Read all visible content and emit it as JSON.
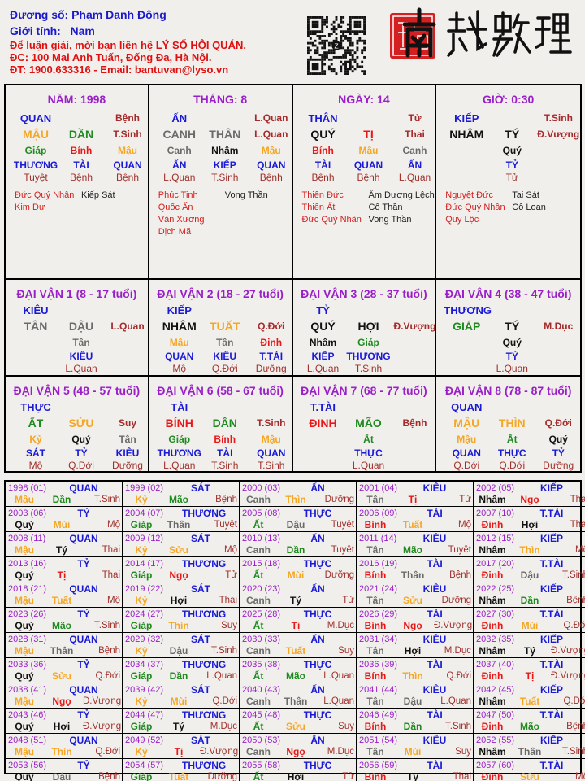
{
  "header": {
    "name_line": "Đương số: Phạm Danh Đông",
    "gender_line": "Giới tính:   Nam",
    "contact_line": "Để luận giải, mời bạn liên hệ LÝ SỐ HỘI QUÁN.",
    "address_line": "ĐC: 100 Mai Anh Tuấn, Đống Đa, Hà Nội.",
    "phone_line": "ĐT: 1900.633316 - Email: bantuvan@lyso.vn"
  },
  "logo": {
    "text": "南越數理",
    "icons": [
      "qr-code-icon",
      "seal-icon"
    ]
  },
  "colors": {
    "wood": "#1f8a1f",
    "fire": "#e81818",
    "earth": "#f5a623",
    "metal": "#6b6b6b",
    "water": "#111111",
    "ten_god": "#1a1ad6",
    "phase": "#a0302c",
    "title": "#9a1fc8",
    "good_star": "#d42020",
    "bad_star": "#222222"
  },
  "pillars": [
    {
      "title": "NĂM: 1998",
      "god": "QUAN",
      "top_phase": "Bệnh",
      "stem": "MẬU",
      "branch": "DẦN",
      "phase": "T.Sinh",
      "hidden": [
        {
          "stem": "Giáp",
          "god": "THƯƠNG",
          "phase": "Tuyệt"
        },
        {
          "stem": "Bính",
          "god": "TÀI",
          "phase": "Bệnh"
        },
        {
          "stem": "Mậu",
          "god": "QUAN",
          "phase": "Bệnh"
        }
      ],
      "good_stars": [
        "Đức Quý Nhân",
        "Kim Dư"
      ],
      "bad_stars": [
        "Kiếp Sát"
      ]
    },
    {
      "title": "THÁNG: 8",
      "god": "ẤN",
      "top_phase": "L.Quan",
      "stem": "CANH",
      "branch": "THÂN",
      "phase": "L.Quan",
      "hidden": [
        {
          "stem": "Canh",
          "god": "ẤN",
          "phase": "L.Quan"
        },
        {
          "stem": "Nhâm",
          "god": "KIẾP",
          "phase": "T.Sinh"
        },
        {
          "stem": "Mậu",
          "god": "QUAN",
          "phase": "Bệnh"
        }
      ],
      "good_stars": [
        "Phúc Tinh",
        "Quốc Ấn",
        "Văn Xương",
        "Dịch Mã"
      ],
      "bad_stars": [
        "Vong Thần"
      ]
    },
    {
      "title": "NGÀY: 14",
      "god": "THÂN",
      "top_phase": "Tử",
      "stem": "QUÝ",
      "branch": "TỊ",
      "phase": "Thai",
      "hidden": [
        {
          "stem": "Bính",
          "god": "TÀI",
          "phase": "Bệnh"
        },
        {
          "stem": "Mậu",
          "god": "QUAN",
          "phase": "Bệnh"
        },
        {
          "stem": "Canh",
          "god": "ẤN",
          "phase": "L.Quan"
        }
      ],
      "good_stars": [
        "Thiên Đức",
        "Thiên Ất",
        "Đức Quý Nhân"
      ],
      "bad_stars": [
        "Âm Dương Lệch",
        "Cô Thần",
        "Vong Thần"
      ]
    },
    {
      "title": "GIỜ: 0:30",
      "god": "KIẾP",
      "top_phase": "T.Sinh",
      "stem": "NHÂM",
      "branch": "TÝ",
      "phase": "Đ.Vượng",
      "hidden": [
        {
          "stem": "Quý",
          "god": "TỶ",
          "phase": "Tử"
        }
      ],
      "good_stars": [
        "Nguyệt Đức",
        "Đức Quý Nhân",
        "Quy Lộc"
      ],
      "bad_stars": [
        "Tai Sát",
        "Cô Loan"
      ]
    }
  ],
  "dai_van": [
    {
      "title": "ĐẠI VẬN 1 (8 - 17 tuổi)",
      "god": "KIÊU",
      "stem": "TÂN",
      "branch": "DẬU",
      "phase": "L.Quan",
      "hidden": [
        {
          "stem": "Tân",
          "god": "KIÊU",
          "phase": "L.Quan"
        }
      ]
    },
    {
      "title": "ĐẠI VẬN 2 (18 - 27 tuổi)",
      "god": "KIẾP",
      "stem": "NHÂM",
      "branch": "TUẤT",
      "phase": "Q.Đới",
      "hidden": [
        {
          "stem": "Mậu",
          "god": "QUAN",
          "phase": "Mộ"
        },
        {
          "stem": "Tân",
          "god": "KIÊU",
          "phase": "Q.Đới"
        },
        {
          "stem": "Đinh",
          "god": "T.TÀI",
          "phase": "Dưỡng"
        }
      ]
    },
    {
      "title": "ĐẠI VẬN 3 (28 - 37 tuổi)",
      "god": "TỶ",
      "stem": "QUÝ",
      "branch": "HỢI",
      "phase": "Đ.Vượng",
      "hidden": [
        {
          "stem": "Nhâm",
          "god": "KIẾP",
          "phase": "L.Quan"
        },
        {
          "stem": "Giáp",
          "god": "THƯƠNG",
          "phase": "T.Sinh"
        }
      ]
    },
    {
      "title": "ĐẠI VẬN 4 (38 - 47 tuổi)",
      "god": "THƯƠNG",
      "stem": "GIÁP",
      "branch": "TÝ",
      "phase": "M.Dục",
      "hidden": [
        {
          "stem": "Quý",
          "god": "TỶ",
          "phase": "L.Quan"
        }
      ]
    },
    {
      "title": "ĐẠI VẬN 5 (48 - 57 tuổi)",
      "god": "THỰC",
      "stem": "ẤT",
      "branch": "SỬU",
      "phase": "Suy",
      "hidden": [
        {
          "stem": "Kỷ",
          "god": "SÁT",
          "phase": "Mộ"
        },
        {
          "stem": "Quý",
          "god": "TỶ",
          "phase": "Q.Đới"
        },
        {
          "stem": "Tân",
          "god": "KIÊU",
          "phase": "Dưỡng"
        }
      ]
    },
    {
      "title": "ĐẠI VẬN 6 (58 - 67 tuổi)",
      "god": "TÀI",
      "stem": "BÍNH",
      "branch": "DẦN",
      "phase": "T.Sinh",
      "hidden": [
        {
          "stem": "Giáp",
          "god": "THƯƠNG",
          "phase": "L.Quan"
        },
        {
          "stem": "Bính",
          "god": "TÀI",
          "phase": "T.Sinh"
        },
        {
          "stem": "Mậu",
          "god": "QUAN",
          "phase": "T.Sinh"
        }
      ]
    },
    {
      "title": "ĐẠI VẬN 7 (68 - 77 tuổi)",
      "god": "T.TÀI",
      "stem": "ĐINH",
      "branch": "MÃO",
      "phase": "Bệnh",
      "hidden": [
        {
          "stem": "Ất",
          "god": "THỰC",
          "phase": "L.Quan"
        }
      ]
    },
    {
      "title": "ĐẠI VẬN 8 (78 - 87 tuổi)",
      "god": "QUAN",
      "stem": "MẬU",
      "branch": "THÌN",
      "phase": "Q.Đới",
      "hidden": [
        {
          "stem": "Mậu",
          "god": "QUAN",
          "phase": "Q.Đới"
        },
        {
          "stem": "Ất",
          "god": "THỰC",
          "phase": "Q.Đới"
        },
        {
          "stem": "Quý",
          "god": "TỶ",
          "phase": "Dưỡng"
        }
      ]
    }
  ],
  "years": [
    {
      "year": "1998 (01)",
      "god": "QUAN",
      "stem": "Mậu",
      "branch": "Dần",
      "phase": "T.Sinh"
    },
    {
      "year": "1999 (02)",
      "god": "SÁT",
      "stem": "Kỷ",
      "branch": "Mão",
      "phase": "Bệnh"
    },
    {
      "year": "2000 (03)",
      "god": "ẤN",
      "stem": "Canh",
      "branch": "Thìn",
      "phase": "Dưỡng"
    },
    {
      "year": "2001 (04)",
      "god": "KIÊU",
      "stem": "Tân",
      "branch": "Tị",
      "phase": "Tử"
    },
    {
      "year": "2002 (05)",
      "god": "KIẾP",
      "stem": "Nhâm",
      "branch": "Ngọ",
      "phase": "Thai"
    },
    {
      "year": "2003 (06)",
      "god": "TỶ",
      "stem": "Quý",
      "branch": "Mùi",
      "phase": "Mộ"
    },
    {
      "year": "2004 (07)",
      "god": "THƯƠNG",
      "stem": "Giáp",
      "branch": "Thân",
      "phase": "Tuyệt"
    },
    {
      "year": "2005 (08)",
      "god": "THỰC",
      "stem": "Ất",
      "branch": "Dậu",
      "phase": "Tuyệt"
    },
    {
      "year": "2006 (09)",
      "god": "TÀI",
      "stem": "Bính",
      "branch": "Tuất",
      "phase": "Mộ"
    },
    {
      "year": "2007 (10)",
      "god": "T.TÀI",
      "stem": "Đinh",
      "branch": "Hợi",
      "phase": "Thai"
    },
    {
      "year": "2008 (11)",
      "god": "QUAN",
      "stem": "Mậu",
      "branch": "Tý",
      "phase": "Thai"
    },
    {
      "year": "2009 (12)",
      "god": "SÁT",
      "stem": "Kỷ",
      "branch": "Sửu",
      "phase": "Mộ"
    },
    {
      "year": "2010 (13)",
      "god": "ẤN",
      "stem": "Canh",
      "branch": "Dần",
      "phase": "Tuyệt"
    },
    {
      "year": "2011 (14)",
      "god": "KIÊU",
      "stem": "Tân",
      "branch": "Mão",
      "phase": "Tuyệt"
    },
    {
      "year": "2012 (15)",
      "god": "KIẾP",
      "stem": "Nhâm",
      "branch": "Thìn",
      "phase": "Mộ"
    },
    {
      "year": "2013 (16)",
      "god": "TỶ",
      "stem": "Quý",
      "branch": "Tị",
      "phase": "Thai"
    },
    {
      "year": "2014 (17)",
      "god": "THƯƠNG",
      "stem": "Giáp",
      "branch": "Ngọ",
      "phase": "Tử"
    },
    {
      "year": "2015 (18)",
      "god": "THỰC",
      "stem": "Ất",
      "branch": "Mùi",
      "phase": "Dưỡng"
    },
    {
      "year": "2016 (19)",
      "god": "TÀI",
      "stem": "Bính",
      "branch": "Thân",
      "phase": "Bệnh"
    },
    {
      "year": "2017 (20)",
      "god": "T.TÀI",
      "stem": "Đinh",
      "branch": "Dậu",
      "phase": "T.Sinh"
    },
    {
      "year": "2018 (21)",
      "god": "QUAN",
      "stem": "Mậu",
      "branch": "Tuất",
      "phase": "Mộ"
    },
    {
      "year": "2019 (22)",
      "god": "SÁT",
      "stem": "Kỷ",
      "branch": "Hợi",
      "phase": "Thai"
    },
    {
      "year": "2020 (23)",
      "god": "ẤN",
      "stem": "Canh",
      "branch": "Tý",
      "phase": "Tử"
    },
    {
      "year": "2021 (24)",
      "god": "KIÊU",
      "stem": "Tân",
      "branch": "Sửu",
      "phase": "Dưỡng"
    },
    {
      "year": "2022 (25)",
      "god": "KIẾP",
      "stem": "Nhâm",
      "branch": "Dần",
      "phase": "Bệnh"
    },
    {
      "year": "2023 (26)",
      "god": "TỶ",
      "stem": "Quý",
      "branch": "Mão",
      "phase": "T.Sinh"
    },
    {
      "year": "2024 (27)",
      "god": "THƯƠNG",
      "stem": "Giáp",
      "branch": "Thìn",
      "phase": "Suy"
    },
    {
      "year": "2025 (28)",
      "god": "THỰC",
      "stem": "Ất",
      "branch": "Tị",
      "phase": "M.Dục"
    },
    {
      "year": "2026 (29)",
      "god": "TÀI",
      "stem": "Bính",
      "branch": "Ngọ",
      "phase": "Đ.Vượng"
    },
    {
      "year": "2027 (30)",
      "god": "T.TÀI",
      "stem": "Đinh",
      "branch": "Mùi",
      "phase": "Q.Đới"
    },
    {
      "year": "2028 (31)",
      "god": "QUAN",
      "stem": "Mậu",
      "branch": "Thân",
      "phase": "Bệnh"
    },
    {
      "year": "2029 (32)",
      "god": "SÁT",
      "stem": "Kỷ",
      "branch": "Dậu",
      "phase": "T.Sinh"
    },
    {
      "year": "2030 (33)",
      "god": "ẤN",
      "stem": "Canh",
      "branch": "Tuất",
      "phase": "Suy"
    },
    {
      "year": "2031 (34)",
      "god": "KIÊU",
      "stem": "Tân",
      "branch": "Hợi",
      "phase": "M.Dục"
    },
    {
      "year": "2032 (35)",
      "god": "KIẾP",
      "stem": "Nhâm",
      "branch": "Tý",
      "phase": "Đ.Vượng"
    },
    {
      "year": "2033 (36)",
      "god": "TỶ",
      "stem": "Quý",
      "branch": "Sửu",
      "phase": "Q.Đới"
    },
    {
      "year": "2034 (37)",
      "god": "THƯƠNG",
      "stem": "Giáp",
      "branch": "Dần",
      "phase": "L.Quan"
    },
    {
      "year": "2035 (38)",
      "god": "THỰC",
      "stem": "Ất",
      "branch": "Mão",
      "phase": "L.Quan"
    },
    {
      "year": "2036 (39)",
      "god": "TÀI",
      "stem": "Bính",
      "branch": "Thìn",
      "phase": "Q.Đới"
    },
    {
      "year": "2037 (40)",
      "god": "T.TÀI",
      "stem": "Đinh",
      "branch": "Tị",
      "phase": "Đ.Vượng"
    },
    {
      "year": "2038 (41)",
      "god": "QUAN",
      "stem": "Mậu",
      "branch": "Ngọ",
      "phase": "Đ.Vượng"
    },
    {
      "year": "2039 (42)",
      "god": "SÁT",
      "stem": "Kỷ",
      "branch": "Mùi",
      "phase": "Q.Đới"
    },
    {
      "year": "2040 (43)",
      "god": "ẤN",
      "stem": "Canh",
      "branch": "Thân",
      "phase": "L.Quan"
    },
    {
      "year": "2041 (44)",
      "god": "KIÊU",
      "stem": "Tân",
      "branch": "Dậu",
      "phase": "L.Quan"
    },
    {
      "year": "2042 (45)",
      "god": "KIẾP",
      "stem": "Nhâm",
      "branch": "Tuất",
      "phase": "Q.Đới"
    },
    {
      "year": "2043 (46)",
      "god": "TỶ",
      "stem": "Quý",
      "branch": "Hợi",
      "phase": "Đ.Vượng"
    },
    {
      "year": "2044 (47)",
      "god": "THƯƠNG",
      "stem": "Giáp",
      "branch": "Tý",
      "phase": "M.Dục"
    },
    {
      "year": "2045 (48)",
      "god": "THỰC",
      "stem": "Ất",
      "branch": "Sửu",
      "phase": "Suy"
    },
    {
      "year": "2046 (49)",
      "god": "TÀI",
      "stem": "Bính",
      "branch": "Dần",
      "phase": "T.Sinh"
    },
    {
      "year": "2047 (50)",
      "god": "T.TÀI",
      "stem": "Đinh",
      "branch": "Mão",
      "phase": "Bệnh"
    },
    {
      "year": "2048 (51)",
      "god": "QUAN",
      "stem": "Mậu",
      "branch": "Thìn",
      "phase": "Q.Đới"
    },
    {
      "year": "2049 (52)",
      "god": "SÁT",
      "stem": "Kỷ",
      "branch": "Tị",
      "phase": "Đ.Vượng"
    },
    {
      "year": "2050 (53)",
      "god": "ẤN",
      "stem": "Canh",
      "branch": "Ngọ",
      "phase": "M.Dục"
    },
    {
      "year": "2051 (54)",
      "god": "KIÊU",
      "stem": "Tân",
      "branch": "Mùi",
      "phase": "Suy"
    },
    {
      "year": "2052 (55)",
      "god": "KIẾP",
      "stem": "Nhâm",
      "branch": "Thân",
      "phase": "T.Sinh"
    },
    {
      "year": "2053 (56)",
      "god": "TỶ",
      "stem": "Quý",
      "branch": "Dậu",
      "phase": "Bệnh"
    },
    {
      "year": "2054 (57)",
      "god": "THƯƠNG",
      "stem": "Giáp",
      "branch": "Tuất",
      "phase": "Dưỡng"
    },
    {
      "year": "2055 (58)",
      "god": "THỰC",
      "stem": "Ất",
      "branch": "Hợi",
      "phase": "Tử"
    },
    {
      "year": "2056 (59)",
      "god": "TÀI",
      "stem": "Bính",
      "branch": "Tý",
      "phase": "Thai"
    },
    {
      "year": "2057 (60)",
      "god": "T.TÀI",
      "stem": "Đinh",
      "branch": "Sửu",
      "phase": "Mộ"
    }
  ]
}
